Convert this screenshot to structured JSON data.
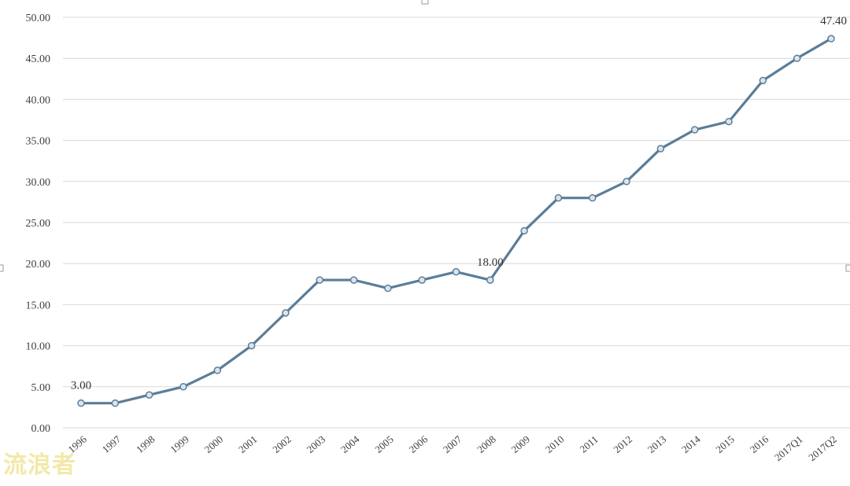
{
  "chart_data": {
    "type": "line",
    "categories": [
      "1996",
      "1997",
      "1998",
      "1999",
      "2000",
      "2001",
      "2002",
      "2003",
      "2004",
      "2005",
      "2006",
      "2007",
      "2008",
      "2009",
      "2010",
      "2011",
      "2012",
      "2013",
      "2014",
      "2015",
      "2016",
      "2017Q1",
      "2017Q2"
    ],
    "series": [
      {
        "values": [
          3.0,
          3.0,
          4.0,
          5.0,
          7.0,
          10.0,
          14.0,
          18.0,
          18.0,
          17.0,
          18.0,
          19.0,
          18.0,
          24.0,
          28.0,
          28.0,
          30.0,
          34.0,
          36.3,
          37.3,
          42.3,
          45.0,
          47.4
        ]
      }
    ],
    "ylim": [
      0,
      50
    ],
    "yticks": [
      "0.00",
      "5.00",
      "10.00",
      "15.00",
      "20.00",
      "25.00",
      "30.00",
      "35.00",
      "40.00",
      "45.00",
      "50.00"
    ],
    "data_labels": [
      {
        "index": 0,
        "text": "3.00"
      },
      {
        "index": 12,
        "text": "18.00"
      },
      {
        "index": 22,
        "text": "47.40"
      }
    ],
    "grid": true,
    "colors": {
      "line": "#5b7d98",
      "grid": "#d9d9d9"
    }
  },
  "watermark": "流浪者"
}
